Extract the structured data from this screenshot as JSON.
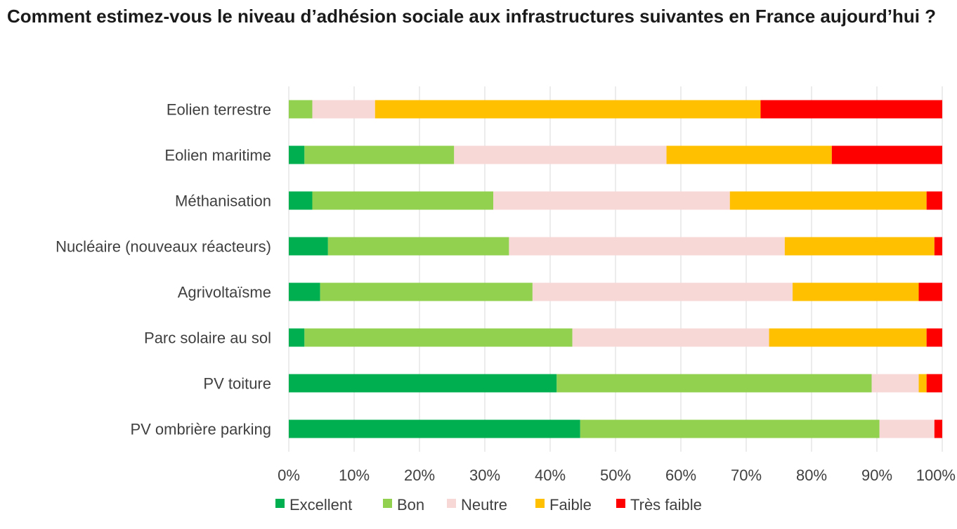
{
  "chart_data": {
    "type": "bar",
    "orientation": "horizontal",
    "stacked": "percent",
    "title": "Comment estimez-vous le niveau d’adhésion sociale aux infrastructures suivantes en France aujourd’hui ?",
    "categories": [
      "Eolien terrestre",
      "Eolien maritime",
      "Méthanisation",
      "Nucléaire (nouveaux réacteurs)",
      "Agrivoltaïsme",
      "Parc solaire au sol",
      "PV toiture",
      "PV ombrière parking"
    ],
    "series": [
      {
        "name": "Excellent",
        "color": "#00b050",
        "values": [
          0,
          2.4,
          3.6,
          6.0,
          4.8,
          2.4,
          41.0,
          44.6
        ]
      },
      {
        "name": "Bon",
        "color": "#92d050",
        "values": [
          3.6,
          22.9,
          27.7,
          27.7,
          32.5,
          41.0,
          48.2,
          45.8
        ]
      },
      {
        "name": "Neutre",
        "color": "#f8d7d7",
        "values": [
          9.6,
          32.5,
          36.2,
          42.2,
          39.8,
          30.1,
          7.2,
          8.4
        ]
      },
      {
        "name": "Faible",
        "color": "#ffc000",
        "values": [
          59.0,
          25.3,
          30.1,
          22.9,
          19.3,
          24.1,
          1.2,
          0
        ]
      },
      {
        "name": "Très faible",
        "color": "#ff0000",
        "values": [
          27.8,
          16.9,
          2.4,
          1.2,
          3.6,
          2.4,
          2.4,
          1.2
        ]
      }
    ],
    "x_ticks": [
      "0%",
      "10%",
      "20%",
      "30%",
      "40%",
      "50%",
      "60%",
      "70%",
      "80%",
      "90%",
      "100%"
    ],
    "xlim": [
      0,
      100
    ],
    "grid": "vertical",
    "legend": "bottom"
  }
}
